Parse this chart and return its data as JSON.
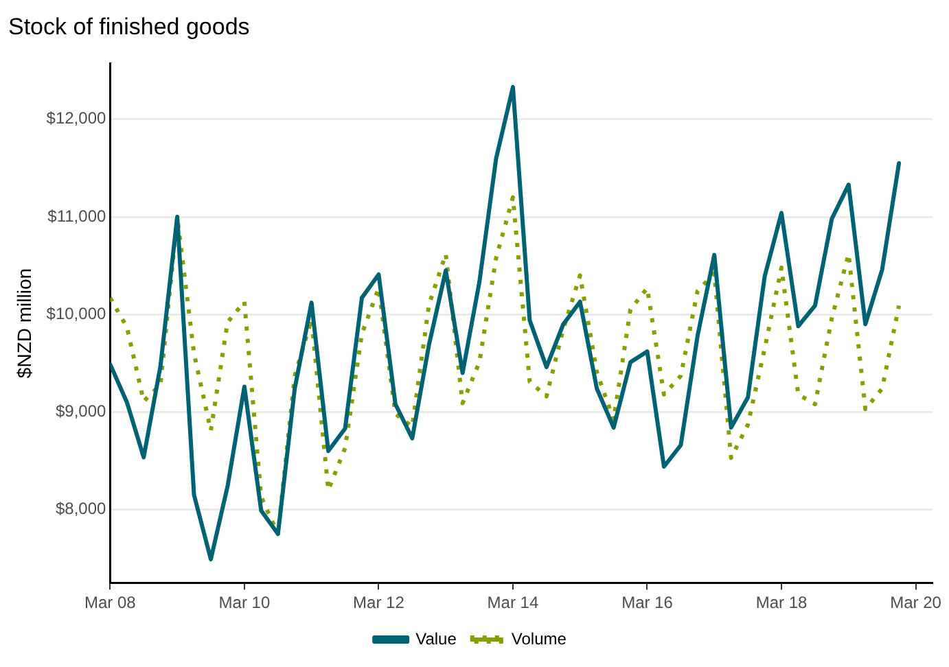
{
  "chart_data": {
    "type": "line",
    "title": "Stock of finished goods",
    "ylabel": "$NZD million",
    "x": [
      "2008-03",
      "2008-06",
      "2008-09",
      "2008-12",
      "2009-03",
      "2009-06",
      "2009-09",
      "2009-12",
      "2010-03",
      "2010-06",
      "2010-09",
      "2010-12",
      "2011-03",
      "2011-06",
      "2011-09",
      "2011-12",
      "2012-03",
      "2012-06",
      "2012-09",
      "2012-12",
      "2013-03",
      "2013-06",
      "2013-09",
      "2013-12",
      "2014-03",
      "2014-06",
      "2014-09",
      "2014-12",
      "2015-03",
      "2015-06",
      "2015-09",
      "2015-12",
      "2016-03",
      "2016-06",
      "2016-09",
      "2016-12",
      "2017-03",
      "2017-06",
      "2017-09",
      "2017-12",
      "2018-03",
      "2018-06",
      "2018-09",
      "2018-12",
      "2019-03",
      "2019-06",
      "2019-09",
      "2019-12"
    ],
    "series": [
      {
        "name": "Value",
        "color": "#006272",
        "line_style": "solid",
        "values": [
          9490,
          9100,
          8535,
          9470,
          11000,
          8150,
          7490,
          8240,
          9260,
          7990,
          7750,
          9240,
          10120,
          8600,
          8830,
          10170,
          10410,
          9080,
          8730,
          9690,
          10450,
          9400,
          10330,
          11600,
          12330,
          9940,
          9460,
          9900,
          10130,
          9240,
          8840,
          9510,
          9620,
          8440,
          8660,
          9780,
          10610,
          8840,
          9150,
          10390,
          11040,
          9880,
          10090,
          10980,
          11330,
          9900,
          10460,
          11550
        ]
      },
      {
        "name": "Volume",
        "color": "#85a000",
        "line_style": "dotted",
        "values": [
          10170,
          9870,
          9110,
          9280,
          11000,
          9600,
          8810,
          9920,
          10130,
          8130,
          7750,
          9370,
          9950,
          8200,
          8630,
          9800,
          10270,
          8980,
          8850,
          10100,
          10620,
          9090,
          9510,
          10580,
          11200,
          9310,
          9160,
          9850,
          10400,
          9410,
          8920,
          10050,
          10270,
          9180,
          9370,
          10240,
          10420,
          8530,
          8870,
          9650,
          10480,
          9180,
          9080,
          9960,
          10620,
          9030,
          9240,
          10090
        ]
      }
    ],
    "xlim": [
      "2008-03",
      "2020-06"
    ],
    "xticks": [
      {
        "value": "2008-03",
        "label": "Mar 08"
      },
      {
        "value": "2010-03",
        "label": "Mar 10"
      },
      {
        "value": "2012-03",
        "label": "Mar 12"
      },
      {
        "value": "2014-03",
        "label": "Mar 14"
      },
      {
        "value": "2016-03",
        "label": "Mar 16"
      },
      {
        "value": "2018-03",
        "label": "Mar 18"
      },
      {
        "value": "2020-03",
        "label": "Mar 20"
      }
    ],
    "ylim": [
      7250,
      12570
    ],
    "yticks": [
      {
        "value": 8000,
        "label": "$8,000"
      },
      {
        "value": 9000,
        "label": "$9,000"
      },
      {
        "value": 10000,
        "label": "$10,000"
      },
      {
        "value": 11000,
        "label": "$11,000"
      },
      {
        "value": 12000,
        "label": "$12,000"
      }
    ],
    "grid": "y",
    "legend": "bottom",
    "marker": "none"
  }
}
